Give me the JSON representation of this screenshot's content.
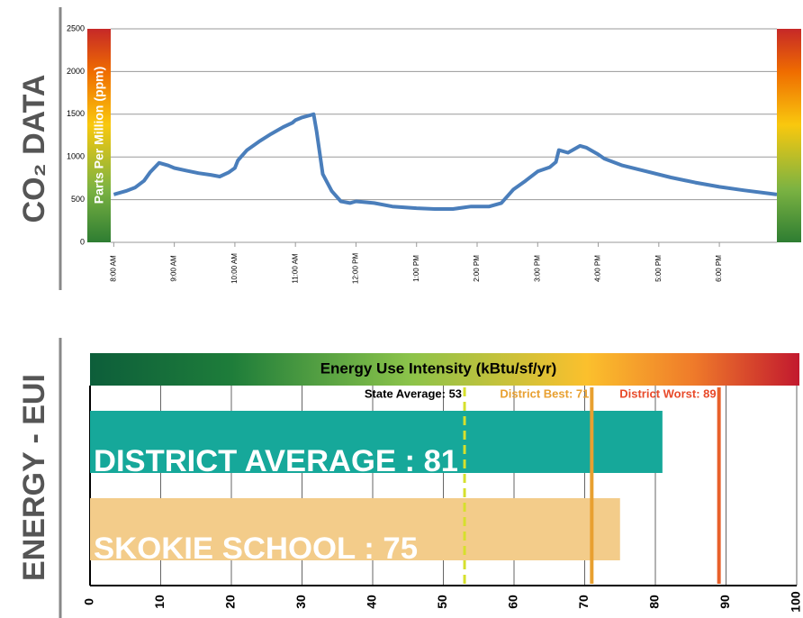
{
  "chart_data": [
    {
      "type": "line",
      "side_label": "CO₂ DATA",
      "y_label": "Parts Per Million (ppm)",
      "xlim": [
        7.95,
        18.95
      ],
      "xticks": [
        {
          "value": 8,
          "label": "8:00 AM"
        },
        {
          "value": 9,
          "label": "9:00 AM"
        },
        {
          "value": 10,
          "label": "10:00 AM"
        },
        {
          "value": 11,
          "label": "11:00 AM"
        },
        {
          "value": 12,
          "label": "12:00 PM"
        },
        {
          "value": 13,
          "label": "1:00 PM"
        },
        {
          "value": 14,
          "label": "2:00 PM"
        },
        {
          "value": 15,
          "label": "3:00 PM"
        },
        {
          "value": 16,
          "label": "4:00 PM"
        },
        {
          "value": 17,
          "label": "5:00 PM"
        },
        {
          "value": 18,
          "label": "6:00 PM"
        }
      ],
      "ylim": [
        0,
        2500
      ],
      "yticks": [
        0,
        500,
        1000,
        1500,
        2000,
        2500
      ],
      "grid": true,
      "x": [
        8.0,
        8.2,
        8.35,
        8.5,
        8.6,
        8.75,
        8.9,
        9.0,
        9.2,
        9.4,
        9.6,
        9.75,
        9.9,
        10.0,
        10.05,
        10.2,
        10.4,
        10.6,
        10.8,
        10.95,
        11.0,
        11.1,
        11.3,
        11.35,
        11.45,
        11.6,
        11.75,
        11.9,
        12.0,
        12.3,
        12.6,
        13.0,
        13.3,
        13.6,
        13.9,
        14.2,
        14.4,
        14.6,
        14.8,
        15.0,
        15.2,
        15.3,
        15.35,
        15.5,
        15.7,
        15.8,
        16.0,
        16.1,
        16.4,
        16.8,
        17.2,
        17.6,
        18.0,
        18.4,
        18.95
      ],
      "series": [
        {
          "name": "CO2",
          "color": "#4a7ebb",
          "values": [
            560,
            600,
            640,
            720,
            820,
            930,
            900,
            870,
            840,
            810,
            790,
            770,
            820,
            870,
            960,
            1080,
            1180,
            1270,
            1350,
            1400,
            1430,
            1460,
            1500,
            1300,
            800,
            600,
            480,
            460,
            480,
            460,
            420,
            400,
            390,
            390,
            420,
            420,
            460,
            620,
            720,
            830,
            880,
            940,
            1080,
            1050,
            1130,
            1110,
            1030,
            980,
            900,
            830,
            760,
            700,
            650,
            610,
            560
          ]
        }
      ]
    },
    {
      "type": "hbar",
      "side_label": "ENERGY - EUI",
      "title": "Energy Use Intensity (kBtu/sf/yr)",
      "xlim": [
        0,
        100
      ],
      "xticks": [
        0,
        10,
        20,
        30,
        40,
        50,
        60,
        70,
        80,
        90,
        100
      ],
      "grid": true,
      "values": [
        81,
        75
      ],
      "value_labels": [
        "DISTRICT AVERAGE : 81",
        "SKOKIE SCHOOL : 75"
      ],
      "colors": [
        "#16a89a",
        "#f3cc8a"
      ],
      "reference_lines": [
        {
          "value": 53,
          "label": "State Average: 53",
          "color": "#d6e02c",
          "label_color": "#000000",
          "dashed": true
        },
        {
          "value": 71,
          "label": "District Best: 71",
          "color": "#e8a030",
          "label_color": "#e8a030",
          "dashed": false
        },
        {
          "value": 89,
          "label": "District Worst: 89",
          "color": "#e8602a",
          "label_color": "#e84a2a",
          "dashed": false
        }
      ]
    }
  ]
}
